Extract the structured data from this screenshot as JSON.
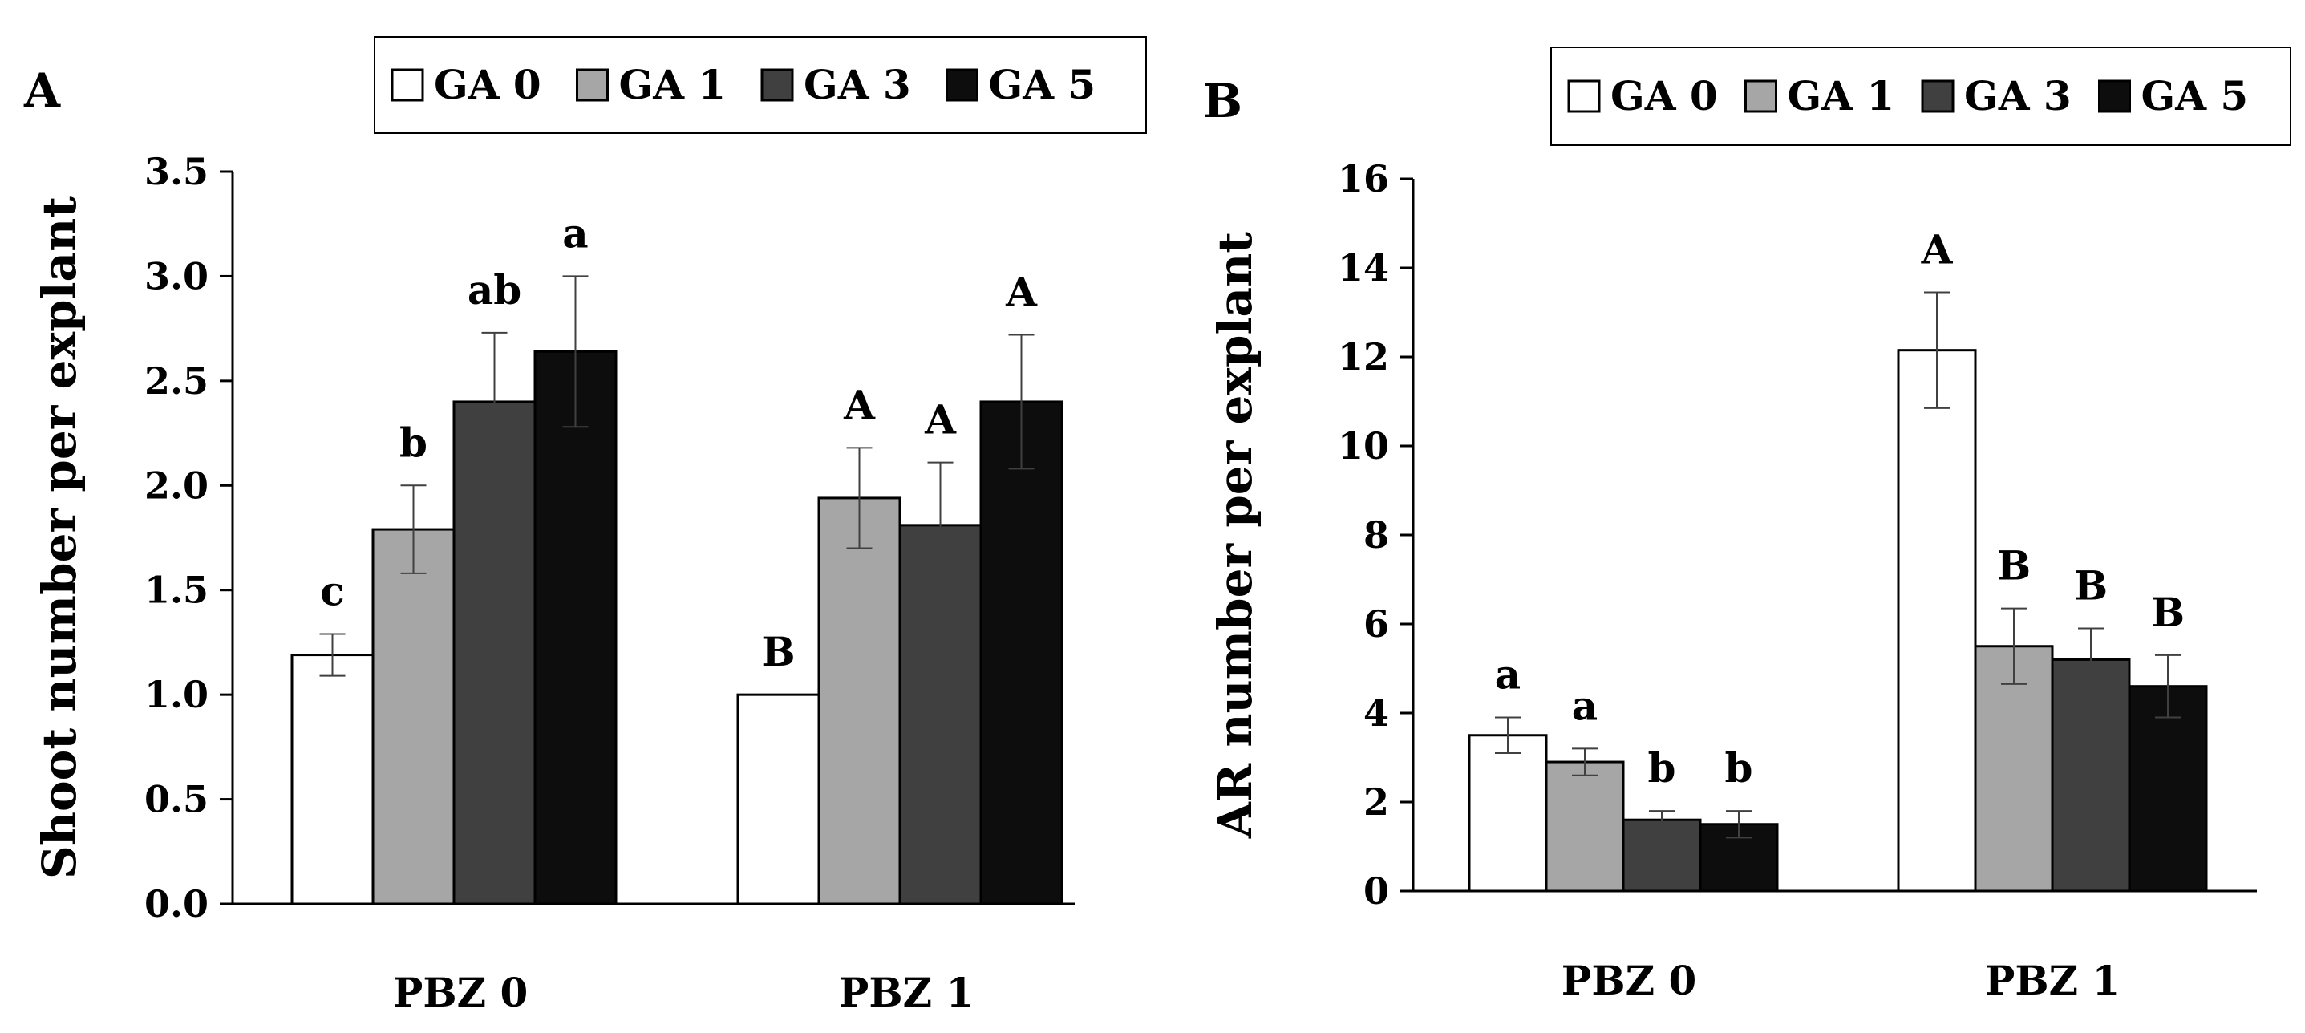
{
  "colors": {
    "GA 0": "#ffffff",
    "GA 1": "#a6a6a6",
    "GA 3": "#404040",
    "GA 5": "#0d0d0d",
    "stroke": "#000000",
    "errorbar": "#404040"
  },
  "chart_data": [
    {
      "panel_label": "A",
      "type": "bar",
      "categories": [
        "PBZ 0",
        "PBZ 1"
      ],
      "legend": [
        "GA 0",
        "GA 1",
        "GA 3",
        "GA 5"
      ],
      "ylabel": "Shoot number per explant",
      "xlabel": "",
      "ylim": [
        0,
        3.5
      ],
      "yticks": [
        "0.0",
        "0.5",
        "1.0",
        "1.5",
        "2.0",
        "2.5",
        "3.0",
        "3.5"
      ],
      "series": [
        {
          "name": "GA 0",
          "values": [
            1.19,
            1.0
          ],
          "errors": [
            0.1,
            0.0
          ],
          "letters": [
            "c",
            "B"
          ]
        },
        {
          "name": "GA 1",
          "values": [
            1.79,
            1.94
          ],
          "errors": [
            0.21,
            0.24
          ],
          "letters": [
            "b",
            "A"
          ]
        },
        {
          "name": "GA 3",
          "values": [
            2.4,
            1.81
          ],
          "errors": [
            0.33,
            0.3
          ],
          "letters": [
            "ab",
            "A"
          ]
        },
        {
          "name": "GA 5",
          "values": [
            2.64,
            2.4
          ],
          "errors": [
            0.36,
            0.32
          ],
          "letters": [
            "a",
            "A"
          ]
        }
      ]
    },
    {
      "panel_label": "B",
      "type": "bar",
      "categories": [
        "PBZ 0",
        "PBZ 1"
      ],
      "legend": [
        "GA 0",
        "GA 1",
        "GA 3",
        "GA 5"
      ],
      "ylabel": "AR number per explant",
      "xlabel": "",
      "ylim": [
        0,
        16
      ],
      "yticks": [
        "0",
        "2",
        "4",
        "6",
        "8",
        "10",
        "12",
        "14",
        "16"
      ],
      "series": [
        {
          "name": "GA 0",
          "values": [
            3.5,
            12.15
          ],
          "errors": [
            0.4,
            1.3
          ],
          "letters": [
            "a",
            "A"
          ]
        },
        {
          "name": "GA 1",
          "values": [
            2.9,
            5.5
          ],
          "errors": [
            0.3,
            0.85
          ],
          "letters": [
            "a",
            "B"
          ]
        },
        {
          "name": "GA 3",
          "values": [
            1.6,
            5.2
          ],
          "errors": [
            0.2,
            0.7
          ],
          "letters": [
            "b",
            "B"
          ]
        },
        {
          "name": "GA 5",
          "values": [
            1.5,
            4.6
          ],
          "errors": [
            0.3,
            0.7
          ],
          "letters": [
            "b",
            "B"
          ]
        }
      ]
    }
  ]
}
